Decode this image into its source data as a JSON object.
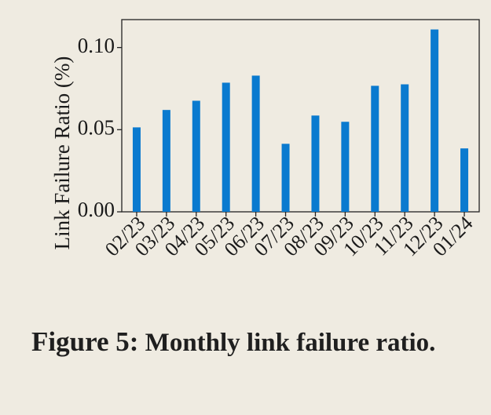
{
  "chart_data": {
    "type": "bar",
    "ylabel": "Link Failure Ratio (%)",
    "categories": [
      "02/23",
      "03/23",
      "04/23",
      "05/23",
      "06/23",
      "07/23",
      "08/23",
      "09/23",
      "10/23",
      "11/23",
      "12/23",
      "01/24"
    ],
    "values": [
      0.0514,
      0.062,
      0.0676,
      0.0786,
      0.0829,
      0.0414,
      0.0586,
      0.0548,
      0.0767,
      0.0776,
      0.111,
      0.0386
    ],
    "color": "#0a7acf",
    "ylim": [
      0,
      0.117
    ],
    "yticks": [
      {
        "value": 0,
        "label": "0.00"
      },
      {
        "value": 0.05,
        "label": "0.05"
      },
      {
        "value": 0.1,
        "label": "0.10"
      }
    ],
    "caption_label": "Figure 5:",
    "caption": "Monthly link failure ratio."
  }
}
